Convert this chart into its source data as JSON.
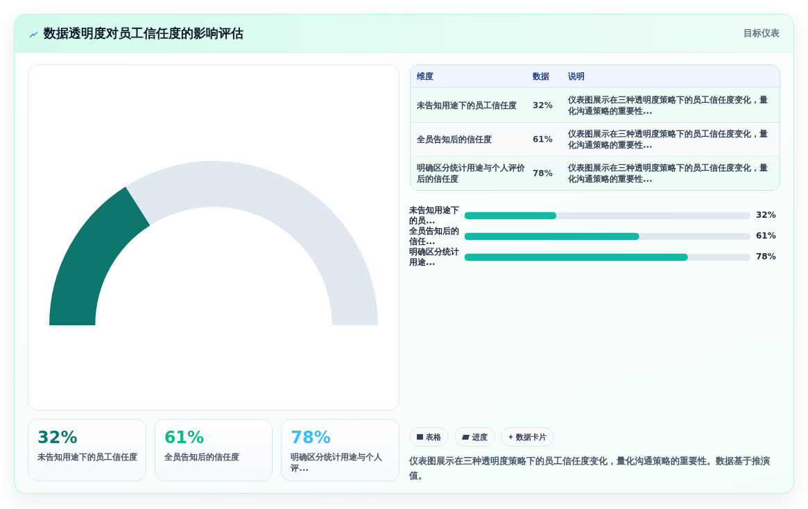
{
  "chart_data": [
    {
      "type": "donut",
      "title": "数据透明度对员工信任度的影响评估",
      "annotations": [
        "目标仪表"
      ],
      "categories": [
        null,
        null
      ],
      "values": [
        32,
        68
      ],
      "colors": [
        "#0f766e",
        "#e2e8f0"
      ]
    },
    {
      "type": "other",
      "categories": [
        "未告知用途下的员工信任度",
        "全员告知后的信任度",
        "明确区分统计用途与个人评价后的信任度"
      ],
      "value_labels": [
        "32%",
        "61%",
        "78%"
      ],
      "annotations": [
        "维度",
        "数据",
        "说明",
        "仪表图展示在三种透明度策略下的员工信任度变化，量化沟通策略的重要性...",
        "仪表图展示在三种透明度策略下的员工信任度变化，量化沟通策略的重要性...",
        "仪表图展示在三种透明度策略下的员工信任度变化，量化沟通策略的重要性..."
      ]
    },
    {
      "type": "bar",
      "orientation": "horizontal",
      "categories": [
        "未告知用途下的员...",
        "全员告知后的信任...",
        "明确区分统计用途..."
      ],
      "values": [
        32,
        61,
        78
      ],
      "value_labels": [
        "32%",
        "61%",
        "78%"
      ],
      "color": "#14b8a6",
      "xlim": [
        0,
        100
      ],
      "tick_labels": "y",
      "annotations": [
        "表格",
        "进度",
        "数据卡片",
        "仪表图展示在三种透明度策略下的员工信任度变化，量化沟通策略的重要性。数据基于推演值。"
      ]
    },
    {
      "type": "other",
      "categories": [
        "未告知用途下的员工信任度",
        "全员告知后的信任度",
        "明确区分统计用途与个人评..."
      ],
      "value_labels": [
        "32%",
        "61%",
        "78%"
      ]
    }
  ]
}
